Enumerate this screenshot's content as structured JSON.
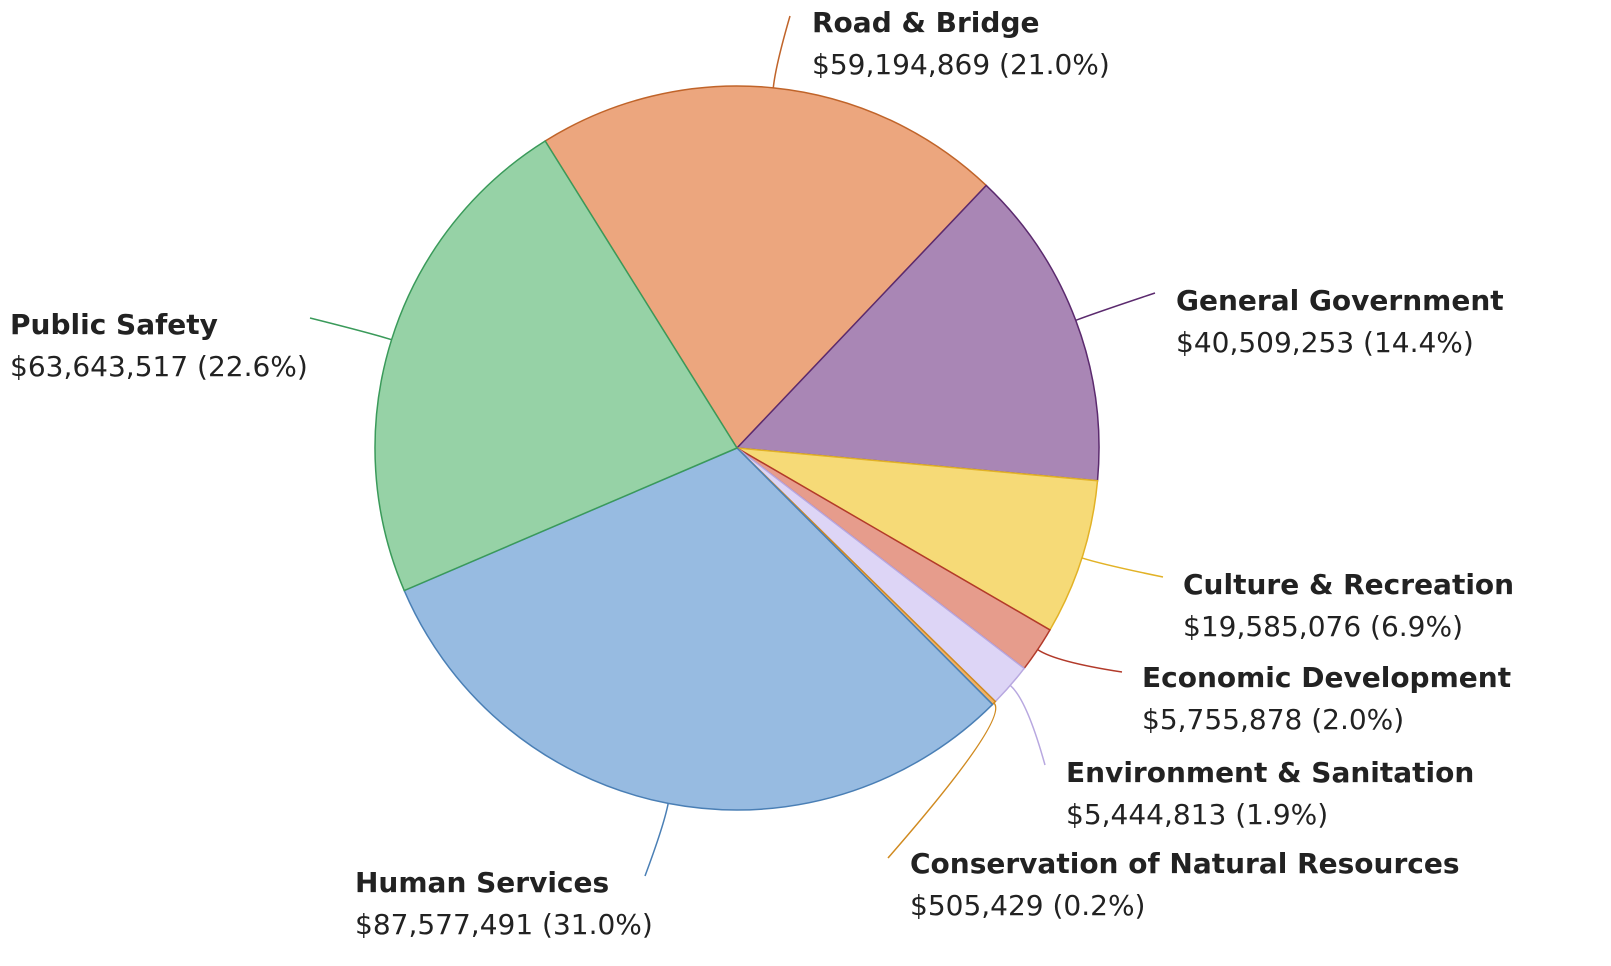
{
  "chart_data": {
    "type": "pie",
    "categories": [
      "Road & Bridge",
      "General Government",
      "Culture & Recreation",
      "Economic Development",
      "Environment & Sanitation",
      "Conservation of Natural Resources",
      "Human Services",
      "Public Safety"
    ],
    "values": [
      59194869,
      40509253,
      19585076,
      5755878,
      5444813,
      505429,
      87577491,
      63643517
    ],
    "value_labels": [
      "$59,194,869 (21.0%)",
      "$40,509,253 (14.4%)",
      "$19,585,076 (6.9%)",
      "$5,755,878 (2.0%)",
      "$5,444,813 (1.9%)",
      "$505,429 (0.2%)",
      "$87,577,491 (31.0%)",
      "$63,643,517 (22.6%)"
    ],
    "colors": [
      "#eca67e",
      "#a986b5",
      "#f6da77",
      "#e69c8c",
      "#ddd5f6",
      "#f2b266",
      "#97bbe1",
      "#96d2a6"
    ],
    "edge_colors": [
      "#c0642a",
      "#5b2a6e",
      "#e2b226",
      "#b23a2a",
      "#b8a8e0",
      "#d08a20",
      "#4a7fb5",
      "#3a9a5a"
    ]
  }
}
